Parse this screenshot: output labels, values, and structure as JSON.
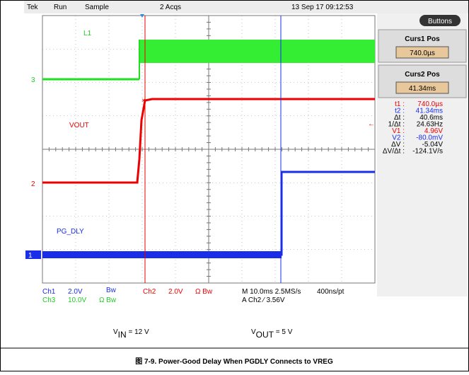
{
  "header": {
    "brand": "Tek",
    "state": "Run",
    "mode": "Sample",
    "acqs": "2 Acqs",
    "date": "13 Sep 17 09:12:53"
  },
  "traces": {
    "l1": "L1",
    "vout": "VOUT",
    "pg": "PG_DLY",
    "markers": [
      "3",
      "2",
      "1"
    ]
  },
  "panel": {
    "button": "Buttons",
    "curs1_title": "Curs1 Pos",
    "curs1_value": "740.0µs",
    "curs2_title": "Curs2 Pos",
    "curs2_value": "41.34ms"
  },
  "readouts": [
    [
      "t1 :",
      "740.0µs"
    ],
    [
      "t2 :",
      "41.34ms"
    ],
    [
      "Δt :",
      "40.6ms"
    ],
    [
      "1/Δt :",
      "24.63Hz"
    ],
    [
      "V1 :",
      "4.96V"
    ],
    [
      "V2 :",
      "-80.0mV"
    ],
    [
      "ΔV :",
      "-5.04V"
    ],
    [
      "ΔV/Δt :",
      "-124.1V/s"
    ]
  ],
  "status": {
    "ch1": "Ch1",
    "ch1_scale": "2.0V",
    "ch1_bw": "Bw",
    "ch2": "Ch2",
    "ch2_scale": "2.0V",
    "ch2_bw": "Ω Bw",
    "timebase": "M 10.0ms 2.5MS/s",
    "rate": "400ns/pt",
    "ch3": "Ch3",
    "ch3_scale": "10.0V",
    "ch3_bw": "Ω Bw",
    "trigger": "A Ch2 ⁄ 3.56V"
  },
  "conditions": {
    "vin": [
      "V",
      "IN",
      " = 12 V"
    ],
    "vout": [
      "V",
      "OUT",
      " = 5 V"
    ]
  },
  "caption": "图 7-9. Power-Good Delay When PGDLY Connects to VREG"
}
